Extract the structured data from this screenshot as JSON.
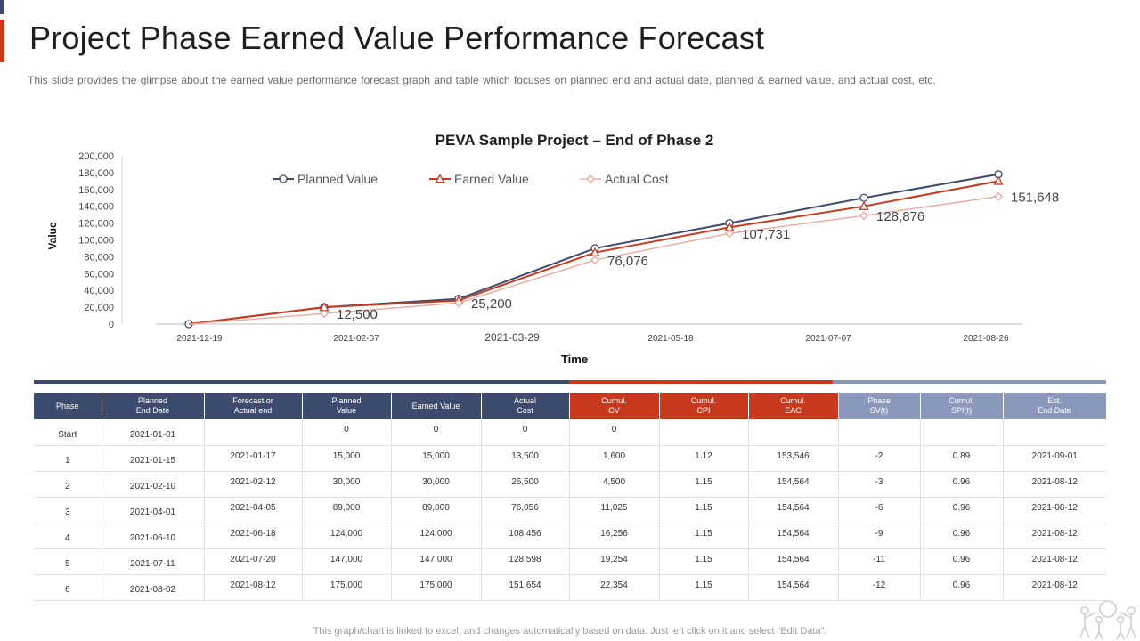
{
  "header": {
    "title": "Project Phase Earned Value Performance Forecast",
    "subtitle": "This slide provides the glimpse about the earned value performance forecast graph and table which focuses on planned end and actual date, planned & earned value, and actual cost, etc."
  },
  "colors": {
    "navy": "#3c4b6e",
    "red": "#c8391e",
    "lavender": "#8a99bb",
    "salmon": "#eaa597"
  },
  "chart_data": {
    "type": "line",
    "title": "PEVA Sample Project – End of Phase 2",
    "xlabel": "Time",
    "ylabel": "Value",
    "ylim": [
      0,
      200000
    ],
    "yticks": [
      "0",
      "20,000",
      "40,000",
      "60,000",
      "80,000",
      "100,000",
      "120,000",
      "140,000",
      "160,000",
      "180,000",
      "200,000"
    ],
    "xtick_labels": [
      "2021-12-19",
      "2021-02-07",
      "2021-03-29",
      "2021-05-18",
      "2021-07-07",
      "2021-08-26"
    ],
    "legend_position": "top",
    "series": [
      {
        "name": "Planned Value",
        "values": [
          0,
          20000,
          30000,
          90000,
          120000,
          150000,
          178000
        ]
      },
      {
        "name": "Earned Value",
        "values": [
          0,
          20000,
          28000,
          85000,
          115000,
          140000,
          170000
        ]
      },
      {
        "name": "Actual Cost",
        "values": [
          0,
          12500,
          25200,
          76076,
          107731,
          128876,
          151648
        ]
      }
    ],
    "data_labels": [
      "12,500",
      "25,200",
      "76,076",
      "107,731",
      "128,876",
      "151,648"
    ]
  },
  "table": {
    "headers": [
      "Phase",
      "Planned\nEnd Date",
      "Forecast or\nActual end",
      "Planned\nValue",
      "Earned Value",
      "Actual\nCost",
      "Cumul.\nCV",
      "Cumul.\nCPI",
      "Cumul.\nEAC",
      "Phase\nSV(t)",
      "Cumul.\nSPI(t)",
      "Est.\nEnd Date"
    ],
    "rows": [
      [
        "Start",
        "2021-01-01",
        "",
        "0",
        "0",
        "0",
        "0",
        "",
        "",
        "",
        "",
        ""
      ],
      [
        "1",
        "2021-01-15",
        "2021-01-17",
        "15,000",
        "15,000",
        "13,500",
        "1,600",
        "1.12",
        "153,546",
        "-2",
        "0.89",
        "2021-09-01"
      ],
      [
        "2",
        "2021-02-10",
        "2021-02-12",
        "30,000",
        "30,000",
        "26,500",
        "4,500",
        "1.15",
        "154,564",
        "-3",
        "0.96",
        "2021-08-12"
      ],
      [
        "3",
        "2021-04-01",
        "2021-04-05",
        "89,000",
        "89,000",
        "76,056",
        "11,025",
        "1.15",
        "154,564",
        "-6",
        "0.96",
        "2021-08-12"
      ],
      [
        "4",
        "2021-06-10",
        "2021-06-18",
        "124,000",
        "124,000",
        "108,456",
        "16,256",
        "1.15",
        "154,564",
        "-9",
        "0.96",
        "2021-08-12"
      ],
      [
        "5",
        "2021-07-11",
        "2021-07-20",
        "147,000",
        "147,000",
        "128,598",
        "19,254",
        "1.15",
        "154,564",
        "-11",
        "0.96",
        "2021-08-12"
      ],
      [
        "6",
        "2021-08-02",
        "2021-08-12",
        "175,000",
        "175,000",
        "151,654",
        "22,354",
        "1.15",
        "154,564",
        "-12",
        "0.96",
        "2021-08-12"
      ]
    ]
  },
  "footer": {
    "note": "This graph/chart is linked to excel, and changes automatically based on data. Just left click on it and select “Edit Data”."
  }
}
